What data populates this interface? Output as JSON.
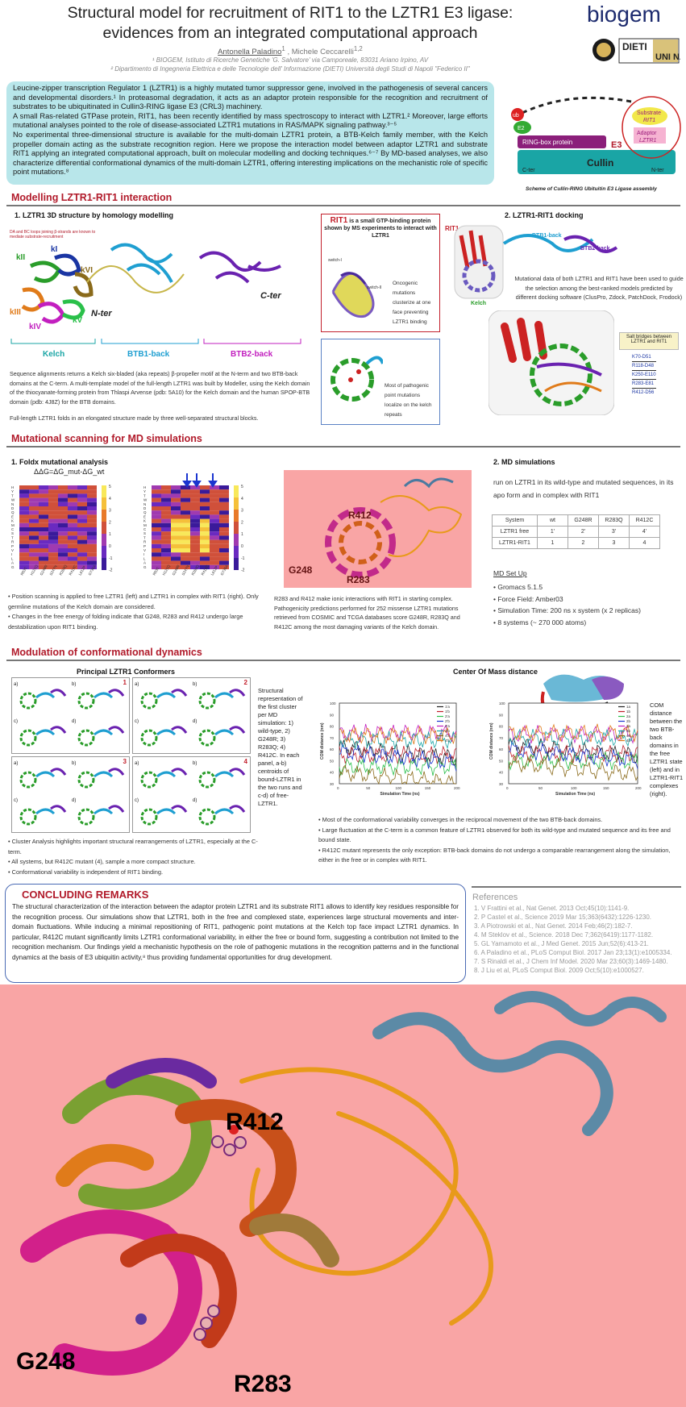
{
  "header": {
    "title_line1": "Structural model for recruitment of RIT1 to the LZTR1 E3 ligase:",
    "title_line2": "evidences from an integrated computational approach",
    "author1": "Antonella Paladino",
    "author1_sup": "1",
    "author_sep": " , ",
    "author2": "Michele Ceccarelli",
    "author2_sup": "1,2",
    "affiliation1": "¹ BIOGEM, Istituto di Ricerche Genetiche 'G. Salvatore' via Camporeale, 83031 Ariano Irpino, AV",
    "affiliation2": "² Dipartimento di Ingegneria Elettrica e delle Tecnologie dell' Informazione (DIETI) Università degli Studi di Napoli \"Federico II\"",
    "logo_biogem": "biogem",
    "logo_dieti": "DIETI",
    "logo_unina": "UNI NA"
  },
  "intro": {
    "p1": "Leucine-zipper transcription Regulator 1 (LZTR1) is a highly mutated tumor suppressor gene, involved in the pathogenesis of several cancers and developmental disorders.¹ In proteasomal degradation, it acts as an adaptor protein responsible for the recognition and recruitment of substrates to be ubiquitinated in Cullin3-RING ligase E3 (CRL3) machinery.",
    "p2": "A small Ras-related GTPase protein, RIT1, has been recently identified by mass spectroscopy to interact with LZTR1.² Moreover, large efforts mutational analyses pointed to the role of disease-associated LZTR1 mutations in RAS/MAPK signaling pathway.³⁻⁵",
    "p3": "No experimental three-dimensional structure is available for the multi-domain LZTR1 protein, a BTB-Kelch family member, with the Kelch propeller domain acting as the substrate recognition region. Here we propose the interaction model between adaptor LZTR1 and substrate RIT1 applying an integrated computational approach, built on molecular modelling and docking techniques.⁶⁻⁷ By MD-based analyses, we also characterize differential conformational dynamics of the multi-domain LZTR1, offering interesting implications on the mechanistic role of specific point mutations.⁸"
  },
  "scheme": {
    "ub": "ub",
    "e2": "E2",
    "ring": "RING-box protein",
    "e3": "E3",
    "substrate": "Substrate",
    "substrate_name": "RIT1",
    "adaptor": "Adaptor",
    "adaptor_name": "LZTR1",
    "cullin": "Cullin",
    "cter": "C-ter",
    "nter": "N-ter",
    "caption": "Scheme of Cullin-RING Ubituitin E3 Ligase assembly"
  },
  "sec1": {
    "title": "Modelling LZTR1-RIT1 interaction",
    "sub1": "1. LZTR1 3D structure by homology modelling",
    "da_note": "DA and BC loops joining β-strands are known to mediate substrate-recruitment",
    "blades": [
      "kI",
      "kII",
      "kIII",
      "kIV",
      "kV",
      "kVI"
    ],
    "cter": "C-ter",
    "nter": "N-ter",
    "domains": [
      "Kelch",
      "BTB1-back",
      "BTB2-back"
    ],
    "text": "Sequence alignments returns a Kelch six-bladed (aka repeats) β-propeller motif at the N-term and two BTB-back domains at the C-term. A multi-template model of the full-length LZTR1 was built by Modeller, using the Kelch domain of the thiocyanate-forming protein from Thlaspi Arvense (pdb: 5A10) for the Kelch domain and the human SPOP-BTB domain (pdb: 4J8Z) for the BTB domains.",
    "text2": "Full-length LZTR1 folds in an elongated structure made by three well-separated structural blocks.",
    "rit1_title": "RIT1",
    "rit1_desc": "is a small GTP-binding protein shown by MS experiments to interact with LZTR1",
    "rit1_note": "Oncogenic mutations clusterize at one face preventing LZTR1 binding",
    "switch1": "switch-I",
    "switch2": "switch-II",
    "kelch_note": "Most of pathogenic point mutations localize on the kelch repeats",
    "sub2": "2. LZTR1-RIT1 docking",
    "dock_rit1": "RIT1",
    "dock_btb1": "BTB1-back",
    "dock_btb2": "BTB2-back",
    "dock_kelch": "Kelch",
    "dock_text": "Mutational data of both LZTR1 and RIT1 have been used to guide the selection among the best-ranked models predicted by different docking software (ClusPro, Zdock, PatchDock, Frodock)",
    "salt_title": "Salt bridges between LZTR1 and RIT1",
    "salt": [
      "K70-D51",
      "R118-D48",
      "K250-E110",
      "R283-E81",
      "R412-D56"
    ]
  },
  "sec2": {
    "title": "Mutational scanning for MD simulations",
    "sub1": "1. Foldx mutational analysis",
    "formula": "ΔΔG=ΔG_mut-ΔG_wt",
    "aa": [
      "H",
      "Y",
      "T",
      "W",
      "N",
      "D",
      "Q",
      "E",
      "K",
      "M",
      "C",
      "S",
      "T",
      "R",
      "P",
      "V",
      "I",
      "L",
      "A",
      "G"
    ],
    "cbar": [
      "5",
      "4",
      "3",
      "2",
      "1",
      "0",
      "-1",
      "-2"
    ],
    "left_x": [
      "R63C",
      "H121Q",
      "G248R",
      "S247N",
      "R283Q",
      "R412C",
      "L812P",
      "G735A"
    ],
    "right_x": [
      "R63C",
      "H121Q",
      "G248R",
      "S247N",
      "R283Q",
      "R412C",
      "L812P",
      "G735A"
    ],
    "bullets": [
      "Position scanning is applied to free LZTR1 (left) and LZTR1 in complex with RIT1 (right). Only germline mutations of the Kelch domain are considered.",
      "Changes in the free energy of folding indicate that G248, R283 and R412 undergo large destabilization upon RIT1 binding."
    ],
    "mut_labels": [
      "R412",
      "G248",
      "R283"
    ],
    "mid_text": "R283 and R412 make ionic interactions with RIT1 in starting complex. Pathogenicity predictions performed for 252 missense LZTR1 mutations retrieved from COSMIC and TCGA databases score G248R, R283Q and R412C among the most damaging variants of the Kelch domain.",
    "sub2": "2. MD simulations",
    "md_text": "run on LZTR1 in its wild-type and mutated sequences, in its apo form and in complex with RIT1",
    "md_table": {
      "header": [
        "System",
        "wt",
        "G248R",
        "R283Q",
        "R412C"
      ],
      "rows": [
        [
          "LZTR1 free",
          "1'",
          "2'",
          "3'",
          "4'"
        ],
        [
          "LZTR1-RIT1",
          "1",
          "2",
          "3",
          "4"
        ]
      ]
    },
    "setup_title": "MD Set Up",
    "setup": [
      "Gromacs 5.1.5",
      "Force Field: Amber03",
      "Simulation Time: 200 ns x system  (x 2 replicas)",
      "8 systems (~ 270 000 atoms)"
    ]
  },
  "sec3": {
    "title": "Modulation of conformational dynamics",
    "conf_title": "Principal LZTR1 Conformers",
    "panel_nums": [
      "1",
      "2",
      "3",
      "4"
    ],
    "panel_letters": [
      "a)",
      "b)",
      "c)",
      "d)"
    ],
    "conf_desc": "Structural representation of the first cluster per MD simulation: 1) wild-type, 2) G248R; 3) R283Q; 4) R412C. In each panel, a-b) centroids of bound-LZTR1 in the two runs and c-d) of free-LZTR1.",
    "conf_bullets": [
      "Cluster Analysis highlights important structural rearrangements of LZTR1, especially at the C-term.",
      "All systems, but R412C mutant (4), sample a more compact structure.",
      "Conformational variability is independent of RIT1 binding."
    ],
    "com_title": "Center Of Mass distance",
    "com_desc": "COM distance between the two BTB-back domains in the free LZTR1 state (left) and in LZTR1-RIT1 complexes (right).",
    "com_bullets": [
      "Most of the conformational variability converges in the reciprocal movement of the two BTB-back domains.",
      "Large fluctuation at the C-term is a common feature of LZTR1 observed for both its wild-type and mutated sequence and its free and bound state.",
      "R412C mutant represents the only exception: BTB-back domains do not undergo a comparable rearrangement along the simulation, either in the free or in complex with RIT1."
    ],
    "xlabel": "Simulation Time (ns)",
    "ylabel": "COM distance (nm)",
    "left_legend": [
      "1'a",
      "1'b",
      "2'a",
      "2'b",
      "3'a",
      "3'b",
      "4'a",
      "4'b"
    ],
    "right_legend": [
      "1a",
      "1b",
      "2a",
      "2b",
      "3a",
      "3b",
      "4a",
      "4b"
    ],
    "yticks": [
      "100",
      "90",
      "80",
      "70",
      "60",
      "50",
      "40",
      "30"
    ],
    "xticks": [
      "0",
      "50",
      "100",
      "150",
      "200"
    ]
  },
  "conclusion": {
    "title": "CONCLUDING REMARKS",
    "text": "The structural characterization of the interaction between the adaptor protein LZTR1 and its substrate RIT1 allows to identify key residues responsible for the recognition process. Our simulations show that LZTR1, both in the free and complexed state, experiences large structural movements and inter-domain fluctuations. While inducing a minimal repositioning of RIT1, pathogenic point mutations at the Kelch top face impact LZTR1 dynamics. In particular, R412C mutant significantly limits LZTR1 conformational variability, in either the free or bound form, suggesting a contribution not limited to the recognition mechanism. Our findings yield a mechanistic hypothesis on the role of pathogenic mutations in the recognition patterns and in the functional dynamics at the basis of E3 ubiquitin activity,⁸ thus providing fundamental opportunities for drug development."
  },
  "references": {
    "title": "References",
    "items": [
      "1.   V Frattini et al., Nat Genet. 2013 Oct;45(10):1141-9.",
      "2.   P Castel et al., Science 2019 Mar 15;363(6432):1226-1230.",
      "3.   A Piotrowski et al., Nat Genet. 2014 Feb;46(2):182-7.",
      "4.   M Steklov et al., Science. 2018 Dec 7;362(6419):1177-1182.",
      "5.   GL Yamamoto et al., J Med Genet. 2015 Jun;52(6):413-21.",
      "6.   A Paladino et al., PLoS Comput Biol. 2017 Jan 23;13(1):e1005334.",
      "7.   S Rinaldi et al., J Chem Inf Model. 2020 Mar 23;60(3):1469-1480.",
      "8.   J Liu et al, PLoS Comput Biol. 2009 Oct;5(10):e1000527."
    ]
  },
  "zoom": {
    "labels": [
      "R412",
      "G248",
      "R283"
    ]
  },
  "colors": {
    "section_red": "#b11a2a",
    "intro_bg": "#b8e6ea",
    "pink_bg": "#f9a5a5",
    "cullin_teal": "#1aa5a5"
  }
}
